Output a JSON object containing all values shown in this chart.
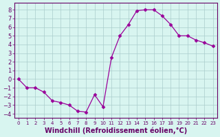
{
  "x": [
    0,
    1,
    2,
    3,
    4,
    5,
    6,
    7,
    8,
    9,
    10,
    11,
    12,
    13,
    14,
    15,
    16,
    17,
    18,
    19,
    20,
    21,
    22,
    23
  ],
  "y": [
    0,
    -1,
    -1,
    -1.5,
    -2.5,
    -2.7,
    -3.0,
    -3.7,
    -3.8,
    -1.8,
    -3.2,
    2.5,
    5.0,
    6.3,
    7.9,
    8.0,
    8.0,
    7.3,
    6.3,
    5.0,
    5.0,
    4.5,
    4.2,
    3.8
  ],
  "line_color": "#990099",
  "marker": "D",
  "marker_size": 2.5,
  "bg_color": "#d8f5f0",
  "grid_color": "#aacccc",
  "axis_color": "#660066",
  "xlabel": "Windchill (Refroidissement éolien,°C)",
  "xlabel_fontsize": 7,
  "ylim": [
    -4.5,
    8.8
  ],
  "xlim": [
    -0.5,
    23.5
  ],
  "yticks": [
    -4,
    -3,
    -2,
    -1,
    0,
    1,
    2,
    3,
    4,
    5,
    6,
    7,
    8
  ],
  "xticks": [
    0,
    1,
    2,
    3,
    4,
    5,
    6,
    7,
    8,
    9,
    10,
    11,
    12,
    13,
    14,
    15,
    16,
    17,
    18,
    19,
    20,
    21,
    22,
    23
  ],
  "tick_fontsize_x": 5,
  "tick_fontsize_y": 6
}
